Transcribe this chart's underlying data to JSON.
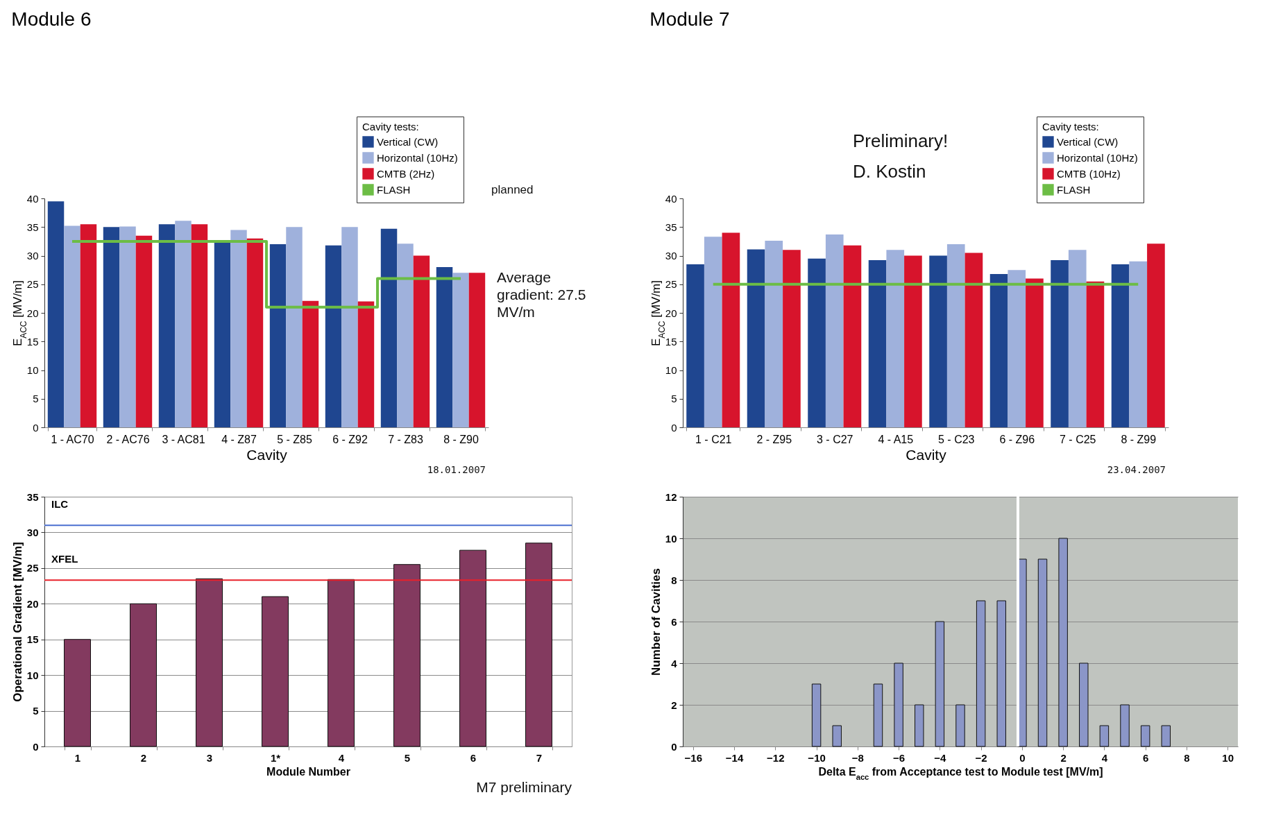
{
  "chart_data": [
    {
      "type": "bar",
      "title": "Module 6",
      "xlabel": "Cavity",
      "ylabel": "E$_{ACC}$ [MV/m]",
      "legend_title": "Cavity tests:",
      "legend": "top right",
      "grid": false,
      "categories": [
        "1 - AC70",
        "2 - AC76",
        "3 - AC81",
        "4 - Z87",
        "5 - Z85",
        "6 - Z92",
        "7 - Z83",
        "8 - Z90"
      ],
      "ylim": [
        0,
        40
      ],
      "yticks": [
        0,
        5,
        10,
        15,
        20,
        25,
        30,
        35,
        40
      ],
      "series": [
        {
          "name": "Vertical (CW)",
          "color": "#1f4690",
          "values": [
            39.5,
            35,
            35.5,
            32.5,
            32,
            31.8,
            34.7,
            28
          ]
        },
        {
          "name": "Horizontal (10Hz)",
          "color": "#9fb1dc",
          "values": [
            35.2,
            35.1,
            36.1,
            34.5,
            35,
            35,
            32.1,
            27
          ]
        },
        {
          "name": "CMTB (2Hz)",
          "color": "#d7142c",
          "values": [
            35.5,
            33.5,
            35.5,
            33,
            22.1,
            22,
            30,
            27
          ]
        },
        {
          "name": "FLASH",
          "type": "step",
          "color": "#6cbd45",
          "values": [
            32.5,
            32.5,
            32.5,
            32.5,
            21,
            21,
            26,
            26
          ]
        }
      ],
      "annotations": [
        "planned",
        "Average gradient: 27.5 MV/m",
        "18.01.2007"
      ]
    },
    {
      "type": "bar",
      "title": "Module 7",
      "xlabel": "Cavity",
      "ylabel": "E$_{ACC}$ [MV/m]",
      "legend_title": "Cavity tests:",
      "legend": "top right",
      "grid": false,
      "categories": [
        "1 - C21",
        "2 - Z95",
        "3 - C27",
        "4 - A15",
        "5 - C23",
        "6 - Z96",
        "7 - C25",
        "8 - Z99"
      ],
      "ylim": [
        0,
        40
      ],
      "yticks": [
        0,
        5,
        10,
        15,
        20,
        25,
        30,
        35,
        40
      ],
      "series": [
        {
          "name": "Vertical (CW)",
          "color": "#1f4690",
          "values": [
            28.5,
            31.1,
            29.5,
            29.2,
            30,
            26.8,
            29.2,
            28.5
          ]
        },
        {
          "name": "Horizontal (10Hz)",
          "color": "#9fb1dc",
          "values": [
            33.3,
            32.6,
            33.7,
            31,
            32,
            27.5,
            31,
            29
          ]
        },
        {
          "name": "CMTB (10Hz)",
          "color": "#d7142c",
          "values": [
            34,
            31,
            31.8,
            30,
            30.5,
            26,
            25.5,
            32.1
          ]
        },
        {
          "name": "FLASH",
          "type": "line",
          "color": "#6cbd45",
          "values": [
            25,
            25,
            25,
            25,
            25,
            25,
            25,
            25
          ]
        }
      ],
      "annotations": [
        "Preliminary!",
        "D. Kostin",
        "23.04.2007"
      ]
    },
    {
      "type": "bar",
      "xlabel": "Module Number",
      "ylabel": "Operational Gradient [MV/m]",
      "grid": "y",
      "categories": [
        "1",
        "2",
        "3",
        "1*",
        "4",
        "5",
        "6",
        "7"
      ],
      "ylim": [
        0,
        35
      ],
      "yticks": [
        0,
        5,
        10,
        15,
        20,
        25,
        30,
        35
      ],
      "series": [
        {
          "color": "#833a5f",
          "values": [
            15,
            20,
            23.5,
            21,
            23.4,
            25.5,
            27.5,
            28.5
          ]
        }
      ],
      "ref_lines": [
        {
          "axis": "y",
          "value": 31,
          "label": "ILC",
          "color": "#4a6fd0"
        },
        {
          "axis": "y",
          "value": 23.3,
          "label": "XFEL",
          "color": "#e8202a"
        }
      ],
      "annotations": [
        "M7 preliminary"
      ]
    },
    {
      "type": "bar",
      "xlabel": "Delta E$_{acc}$ from Acceptance test to Module test [MV/m]",
      "ylabel": "Number of Cavities",
      "grid": "y",
      "x": [
        -10,
        -9,
        -7,
        -6,
        -5,
        -4,
        -3,
        -2,
        -1,
        0,
        1,
        2,
        3,
        4,
        5,
        6,
        7
      ],
      "xlim": [
        -16.5,
        10.5
      ],
      "xticks": [
        -16,
        -14,
        -12,
        -10,
        -8,
        -6,
        -4,
        -2,
        0,
        2,
        4,
        6,
        8,
        10
      ],
      "ylim": [
        0,
        12
      ],
      "yticks": [
        0,
        2,
        4,
        6,
        8,
        10,
        12
      ],
      "series": [
        {
          "color": "#8b96c8",
          "values": [
            3,
            1,
            3,
            4,
            2,
            6,
            2,
            7,
            7,
            9,
            9,
            10,
            4,
            1,
            2,
            1,
            1
          ]
        }
      ],
      "ref_lines": [
        {
          "axis": "x",
          "value": -0.2,
          "color": "#ffffff"
        }
      ]
    }
  ]
}
